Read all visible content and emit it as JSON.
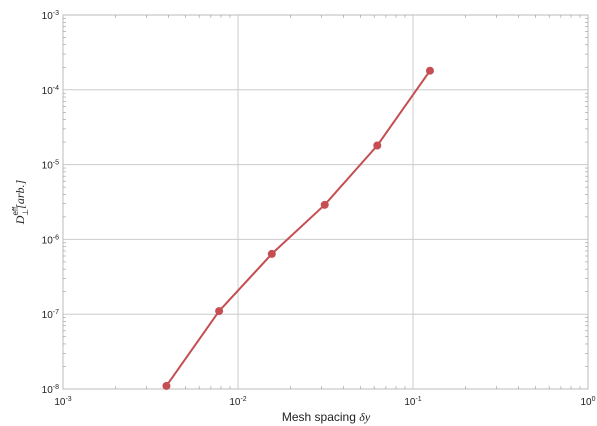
{
  "chart_data": {
    "type": "line",
    "xlabel": {
      "text": "Mesh spacing ",
      "symbol": "δy"
    },
    "ylabel": {
      "base": "D",
      "sup": "eff",
      "sub": "⊥",
      "unit": "[arb.]"
    },
    "x_scale": "log",
    "y_scale": "log",
    "xlim": [
      0.001,
      1
    ],
    "ylim": [
      1e-08,
      0.001
    ],
    "grid": true,
    "x_ticks": [
      {
        "base": "10",
        "exp": "-3"
      },
      {
        "base": "10",
        "exp": "-2"
      },
      {
        "base": "10",
        "exp": "-1"
      },
      {
        "base": "10",
        "exp": "0"
      }
    ],
    "y_ticks": [
      {
        "base": "10",
        "exp": "-8"
      },
      {
        "base": "10",
        "exp": "-7"
      },
      {
        "base": "10",
        "exp": "-6"
      },
      {
        "base": "10",
        "exp": "-5"
      },
      {
        "base": "10",
        "exp": "-4"
      },
      {
        "base": "10",
        "exp": "-3"
      }
    ],
    "series": [
      {
        "color": "#c44e52",
        "x": [
          0.0039,
          0.0078,
          0.0156,
          0.0313,
          0.0625,
          0.125
        ],
        "y": [
          1.1e-08,
          1.1e-07,
          6.4e-07,
          2.9e-06,
          1.8e-05,
          0.00018
        ]
      }
    ]
  }
}
